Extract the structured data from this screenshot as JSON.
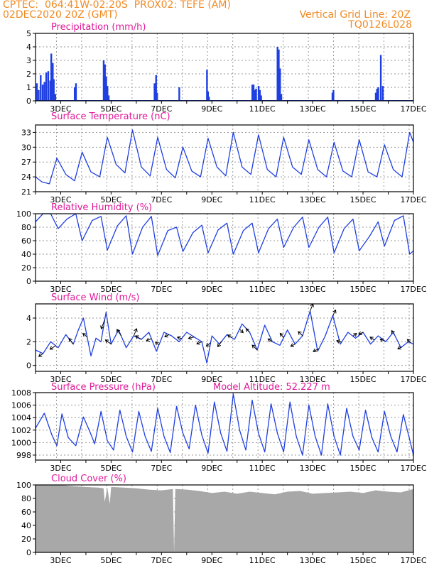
{
  "header": {
    "line1_left": "CPTEC:  064:41W-02:20S  PROX02: TEFE (AM)",
    "line2_left": "02DEC2020 20Z (GMT)",
    "line1_right": "Vertical Grid Line: 20Z",
    "line2_right": "TQ0126L028",
    "model_altitude": "Model Altitude: 52.227 m"
  },
  "colors": {
    "title": "#e0199a",
    "header": "#f08a24",
    "series": "#1f3fe0",
    "cloud": "#a8a8a8"
  },
  "chart_data": [
    {
      "type": "bar",
      "title": "Precipitation (mm/h)",
      "ylim": [
        0,
        5
      ],
      "yticks": [
        0,
        1,
        2,
        3,
        4,
        5
      ],
      "xlim": [
        2.0,
        17.0
      ],
      "xticks": [
        "3DEC",
        "5DEC",
        "7DEC",
        "9DEC",
        "11DEC",
        "13DEC",
        "15DEC",
        "17DEC"
      ],
      "x": [
        2.05,
        2.12,
        2.2,
        2.28,
        2.35,
        2.42,
        2.5,
        2.58,
        2.62,
        2.68,
        2.72,
        2.78,
        3.55,
        3.6,
        4.7,
        4.75,
        4.8,
        4.85,
        4.9,
        6.72,
        6.78,
        6.82,
        7.7,
        8.8,
        8.84,
        8.88,
        10.6,
        10.65,
        10.7,
        10.75,
        10.85,
        10.9,
        10.95,
        11.6,
        11.65,
        11.7,
        11.75,
        13.78,
        13.82,
        15.5,
        15.55,
        15.6,
        15.7,
        15.78
      ],
      "values": [
        1.3,
        0.8,
        1.9,
        1.2,
        1.4,
        2.1,
        2.2,
        1.5,
        3.5,
        2.8,
        1.6,
        0.5,
        1.0,
        1.3,
        3.0,
        2.7,
        1.8,
        1.1,
        0.4,
        1.3,
        1.9,
        0.6,
        1.0,
        2.3,
        0.7,
        0.3,
        1.2,
        1.2,
        0.8,
        0.9,
        1.1,
        0.8,
        0.4,
        4.0,
        3.8,
        2.4,
        0.5,
        0.6,
        0.8,
        0.6,
        0.9,
        1.0,
        3.4,
        1.1
      ]
    },
    {
      "type": "line",
      "title": "Surface Temperature (nC)",
      "ylim": [
        21,
        34.5
      ],
      "yticks": [
        21,
        24,
        27,
        30,
        33
      ],
      "xlim": [
        2.0,
        17.0
      ],
      "xticks": [
        "3DEC",
        "5DEC",
        "7DEC",
        "9DEC",
        "11DEC",
        "13DEC",
        "15DEC",
        "17DEC"
      ],
      "x": [
        2.0,
        2.25,
        2.55,
        2.85,
        3.2,
        3.55,
        3.85,
        4.2,
        4.55,
        4.85,
        5.2,
        5.55,
        5.85,
        6.2,
        6.55,
        6.85,
        7.2,
        7.55,
        7.85,
        8.2,
        8.55,
        8.85,
        9.2,
        9.55,
        9.85,
        10.2,
        10.55,
        10.85,
        11.2,
        11.55,
        11.85,
        12.2,
        12.55,
        12.85,
        13.2,
        13.55,
        13.85,
        14.2,
        14.55,
        14.85,
        15.2,
        15.55,
        15.85,
        16.2,
        16.55,
        16.85,
        17.0
      ],
      "values": [
        24.0,
        23.0,
        22.6,
        27.8,
        24.5,
        23.2,
        29.0,
        25.0,
        24.0,
        32.0,
        26.5,
        24.8,
        33.5,
        26.0,
        24.2,
        32.0,
        25.5,
        23.8,
        30.0,
        25.2,
        24.0,
        31.8,
        26.0,
        24.2,
        33.0,
        26.0,
        24.5,
        32.5,
        25.5,
        24.0,
        32.0,
        26.0,
        24.5,
        31.5,
        25.5,
        24.0,
        31.0,
        25.2,
        24.0,
        31.5,
        25.0,
        24.0,
        30.5,
        25.5,
        24.0,
        33.0,
        31.0
      ]
    },
    {
      "type": "line",
      "title": "Relative Humidity (%)",
      "ylim": [
        0,
        100
      ],
      "yticks": [
        0,
        20,
        40,
        60,
        80,
        100
      ],
      "xlim": [
        2.0,
        17.0
      ],
      "xticks": [
        "3DEC",
        "5DEC",
        "7DEC",
        "9DEC",
        "11DEC",
        "13DEC",
        "15DEC",
        "17DEC"
      ],
      "x": [
        2.0,
        2.3,
        2.6,
        2.9,
        3.25,
        3.6,
        3.85,
        4.25,
        4.6,
        4.85,
        5.25,
        5.6,
        5.85,
        6.25,
        6.6,
        6.85,
        7.25,
        7.6,
        7.85,
        8.25,
        8.6,
        8.85,
        9.25,
        9.6,
        9.85,
        10.25,
        10.6,
        10.85,
        11.25,
        11.6,
        11.85,
        12.25,
        12.6,
        12.85,
        13.25,
        13.6,
        13.85,
        14.25,
        14.6,
        14.85,
        15.25,
        15.6,
        15.85,
        16.25,
        16.6,
        16.85,
        17.0
      ],
      "values": [
        88,
        100,
        100,
        78,
        92,
        100,
        60,
        90,
        96,
        46,
        82,
        97,
        40,
        80,
        96,
        38,
        75,
        80,
        44,
        72,
        83,
        42,
        76,
        86,
        40,
        75,
        86,
        42,
        78,
        92,
        50,
        80,
        95,
        50,
        80,
        95,
        42,
        78,
        92,
        45,
        66,
        88,
        52,
        90,
        97,
        40,
        45
      ]
    },
    {
      "type": "line",
      "title": "Surface Wind (m/s)",
      "ylim": [
        -0.5,
        5.2
      ],
      "yticks": [
        0,
        2,
        4
      ],
      "xlim": [
        2.0,
        17.0
      ],
      "xticks": [
        "3DEC",
        "5DEC",
        "7DEC",
        "9DEC",
        "11DEC",
        "13DEC",
        "15DEC",
        "17DEC"
      ],
      "x": [
        2.0,
        2.3,
        2.6,
        2.9,
        3.2,
        3.5,
        3.7,
        3.9,
        4.2,
        4.4,
        4.6,
        4.8,
        5.0,
        5.3,
        5.6,
        5.9,
        6.2,
        6.5,
        6.8,
        7.1,
        7.4,
        7.7,
        8.0,
        8.3,
        8.6,
        8.8,
        9.0,
        9.3,
        9.6,
        9.9,
        10.2,
        10.5,
        10.8,
        11.1,
        11.4,
        11.7,
        12.0,
        12.3,
        12.6,
        12.9,
        13.2,
        13.5,
        13.8,
        14.1,
        14.4,
        14.7,
        15.0,
        15.3,
        15.6,
        15.9,
        16.2,
        16.5,
        16.8,
        17.0
      ],
      "values": [
        1.3,
        1.0,
        2.0,
        1.5,
        2.6,
        1.8,
        3.0,
        4.0,
        0.8,
        2.3,
        2.0,
        4.5,
        1.8,
        3.0,
        1.5,
        2.5,
        2.2,
        2.8,
        1.2,
        2.8,
        2.5,
        2.0,
        2.8,
        2.4,
        2.0,
        0.2,
        2.5,
        1.8,
        2.6,
        2.2,
        3.5,
        2.8,
        1.3,
        3.4,
        2.0,
        1.7,
        3.0,
        1.8,
        2.5,
        4.6,
        1.2,
        2.5,
        4.2,
        1.8,
        2.8,
        2.3,
        2.8,
        1.8,
        2.5,
        2.0,
        2.8,
        1.5,
        2.0,
        1.8
      ],
      "vectors": [
        {
          "x": 2.3,
          "dx": -6,
          "dy": 4
        },
        {
          "x": 2.8,
          "dx": -8,
          "dy": 5
        },
        {
          "x": 3.5,
          "dx": -6,
          "dy": -8
        },
        {
          "x": 4.05,
          "dx": -6,
          "dy": -5
        },
        {
          "x": 4.75,
          "dx": -5,
          "dy": 13
        },
        {
          "x": 5.0,
          "dx": -8,
          "dy": -6
        },
        {
          "x": 5.4,
          "dx": -6,
          "dy": -9
        },
        {
          "x": 5.9,
          "dx": 4,
          "dy": -10
        },
        {
          "x": 6.2,
          "dx": -8,
          "dy": -5
        },
        {
          "x": 6.6,
          "dx": -7,
          "dy": 3
        },
        {
          "x": 6.9,
          "dx": -5,
          "dy": -4
        },
        {
          "x": 7.3,
          "dx": -6,
          "dy": 3
        },
        {
          "x": 7.8,
          "dx": -6,
          "dy": -2
        },
        {
          "x": 8.3,
          "dx": -8,
          "dy": 2
        },
        {
          "x": 8.6,
          "dx": -7,
          "dy": 3
        },
        {
          "x": 8.95,
          "dx": -6,
          "dy": 5
        },
        {
          "x": 9.4,
          "dx": -6,
          "dy": 8
        },
        {
          "x": 9.8,
          "dx": -6,
          "dy": -4
        },
        {
          "x": 10.1,
          "dx": 5,
          "dy": 5
        },
        {
          "x": 10.5,
          "dx": -5,
          "dy": -5
        },
        {
          "x": 10.8,
          "dx": -7,
          "dy": -7
        },
        {
          "x": 11.4,
          "dx": -6,
          "dy": -4
        },
        {
          "x": 11.85,
          "dx": -5,
          "dy": -6
        },
        {
          "x": 12.3,
          "dx": -6,
          "dy": 3
        },
        {
          "x": 12.6,
          "dx": -6,
          "dy": -6
        },
        {
          "x": 12.9,
          "dx": 4,
          "dy": -10
        },
        {
          "x": 13.25,
          "dx": -8,
          "dy": 4
        },
        {
          "x": 13.8,
          "dx": 4,
          "dy": -8
        },
        {
          "x": 14.15,
          "dx": -7,
          "dy": -2
        },
        {
          "x": 14.6,
          "dx": 5,
          "dy": -4
        },
        {
          "x": 15.0,
          "dx": -6,
          "dy": 3
        },
        {
          "x": 15.45,
          "dx": -6,
          "dy": -4
        },
        {
          "x": 15.85,
          "dx": -6,
          "dy": -2
        },
        {
          "x": 16.25,
          "dx": -4,
          "dy": -6
        },
        {
          "x": 16.55,
          "dx": -6,
          "dy": 3
        },
        {
          "x": 16.9,
          "dx": -5,
          "dy": -5
        }
      ]
    },
    {
      "type": "line",
      "title": "Surface Pressure (hPa)",
      "ylim": [
        997.2,
        1008
      ],
      "yticks": [
        998,
        1000,
        1002,
        1004,
        1006,
        1008
      ],
      "xlim": [
        2.0,
        17.0
      ],
      "xticks": [
        "3DEC",
        "5DEC",
        "7DEC",
        "9DEC",
        "11DEC",
        "13DEC",
        "15DEC",
        "17DEC"
      ],
      "x": [
        2.0,
        2.35,
        2.65,
        2.85,
        3.05,
        3.3,
        3.6,
        3.9,
        4.15,
        4.35,
        4.6,
        4.85,
        5.1,
        5.35,
        5.6,
        5.85,
        6.1,
        6.35,
        6.6,
        6.85,
        7.1,
        7.35,
        7.6,
        7.85,
        8.1,
        8.35,
        8.6,
        8.85,
        9.1,
        9.35,
        9.6,
        9.85,
        10.1,
        10.35,
        10.6,
        10.85,
        11.1,
        11.35,
        11.6,
        11.85,
        12.1,
        12.35,
        12.6,
        12.85,
        13.1,
        13.35,
        13.6,
        13.85,
        14.1,
        14.35,
        14.6,
        14.85,
        15.1,
        15.35,
        15.6,
        15.85,
        16.1,
        16.35,
        16.6,
        16.85,
        17.0
      ],
      "values": [
        1002.3,
        1004.7,
        1001.2,
        999.5,
        1004.6,
        1000.8,
        999.5,
        1004.1,
        1001.8,
        999.8,
        1005.0,
        1000.3,
        998.8,
        1005.2,
        1001.0,
        998.5,
        1005.0,
        1001.0,
        998.6,
        1005.5,
        1001.0,
        998.4,
        1005.8,
        1001.5,
        999.0,
        1006.0,
        1001.2,
        998.3,
        1006.5,
        1001.5,
        998.6,
        1007.8,
        1002.0,
        998.8,
        1006.8,
        1001.5,
        998.5,
        1006.2,
        1001.5,
        998.5,
        1006.5,
        1001.0,
        998.0,
        1006.0,
        1001.0,
        998.0,
        1006.2,
        1001.0,
        998.0,
        1005.5,
        1001.0,
        998.8,
        1005.2,
        1000.8,
        998.5,
        1005.0,
        1001.0,
        998.5,
        1004.5,
        1000.5,
        998.0
      ]
    },
    {
      "type": "area",
      "title": "Cloud Cover (%)",
      "ylim": [
        0,
        100
      ],
      "yticks": [
        0,
        20,
        40,
        60,
        80,
        100
      ],
      "xlim": [
        2.0,
        17.0
      ],
      "xticks": [
        "3DEC",
        "5DEC",
        "7DEC",
        "9DEC",
        "11DEC",
        "13DEC",
        "15DEC",
        "17DEC"
      ],
      "x": [
        2.0,
        2.5,
        3.0,
        3.5,
        4.0,
        4.5,
        4.7,
        4.75,
        4.85,
        4.95,
        5.0,
        5.5,
        6.0,
        6.5,
        7.0,
        7.45,
        7.5,
        7.55,
        8.0,
        8.5,
        9.0,
        9.5,
        10.0,
        10.5,
        11.0,
        11.5,
        12.0,
        12.5,
        13.0,
        13.5,
        14.0,
        14.5,
        15.0,
        15.5,
        16.0,
        16.5,
        17.0
      ],
      "values": [
        100,
        100,
        100,
        98,
        97,
        96,
        95,
        75,
        96,
        72,
        97,
        96,
        95,
        93,
        92,
        94,
        0,
        94,
        93,
        91,
        88,
        90,
        87,
        90,
        88,
        86,
        90,
        91,
        87,
        88,
        89,
        90,
        88,
        92,
        90,
        89,
        94
      ]
    }
  ]
}
